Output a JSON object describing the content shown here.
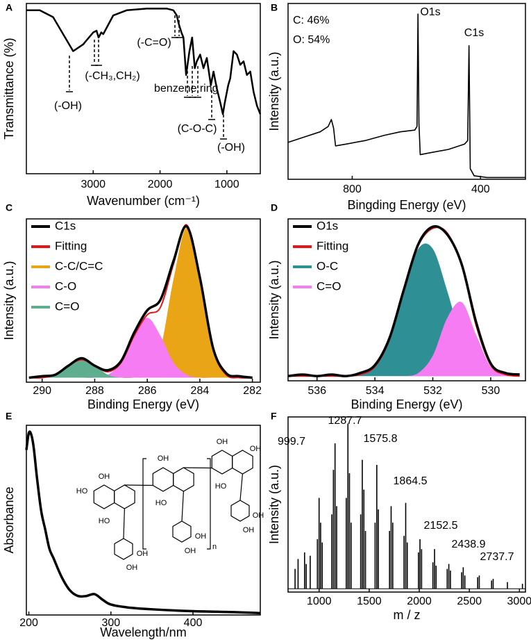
{
  "chart_data": [
    {
      "panel": "A",
      "type": "line",
      "xlabel": "Wavenumber (cm⁻¹)",
      "ylabel": "Transmittance (%)",
      "xlim": [
        4000,
        500
      ],
      "xticks": [
        3000,
        2000,
        1000
      ],
      "ylim": [
        0,
        100
      ],
      "color": "#000000",
      "x": [
        4000,
        3800,
        3600,
        3450,
        3300,
        3150,
        3000,
        2950,
        2920,
        2880,
        2850,
        2700,
        2500,
        2200,
        1900,
        1800,
        1750,
        1720,
        1680,
        1650,
        1610,
        1560,
        1520,
        1480,
        1450,
        1400,
        1350,
        1300,
        1240,
        1200,
        1150,
        1100,
        1060,
        1030,
        980,
        950,
        900,
        850,
        800,
        750,
        700,
        650,
        600,
        550,
        500
      ],
      "values": [
        96,
        96,
        92,
        82,
        72,
        76,
        83,
        84,
        80,
        83,
        82,
        93,
        96,
        97,
        97,
        96,
        93,
        88,
        83,
        80,
        58,
        72,
        80,
        62,
        66,
        70,
        62,
        68,
        52,
        60,
        50,
        42,
        35,
        42,
        52,
        56,
        72,
        70,
        64,
        66,
        58,
        60,
        48,
        40,
        35
      ],
      "annotations": [
        "(-OH)",
        "(-CH₃,CH₂)",
        "(-C=O)",
        "benzene ring",
        "(C-O-C)",
        "(-OH)"
      ]
    },
    {
      "panel": "B",
      "type": "line",
      "xlabel": "Bingding Energy (eV)",
      "ylabel": "Intensity (a.u.)",
      "xlim": [
        1000,
        260
      ],
      "xticks": [
        800,
        400
      ],
      "ylim": [
        0,
        100
      ],
      "color": "#000000",
      "x": [
        1000,
        950,
        900,
        875,
        865,
        858,
        852,
        820,
        760,
        700,
        650,
        605,
        598,
        595,
        592,
        588,
        560,
        500,
        450,
        440,
        436,
        432,
        420,
        380,
        300,
        260
      ],
      "values": [
        21,
        24,
        27,
        30,
        34,
        29,
        19,
        20,
        22,
        25,
        27,
        28,
        30,
        94,
        32,
        14,
        15,
        17,
        20,
        22,
        76,
        6,
        2,
        1,
        1,
        1
      ],
      "annotations": [
        "C: 46%",
        "O: 54%",
        "O1s",
        "C1s"
      ]
    },
    {
      "panel": "C",
      "type": "line",
      "xlabel": "Binding Energy (eV)",
      "ylabel": "Intensity (a.u.)",
      "xlim": [
        290.6,
        281.7
      ],
      "xticks": [
        290,
        288,
        286,
        284,
        282
      ],
      "ylim": [
        -3,
        106
      ],
      "legend": "upper left",
      "smooth": true,
      "x": [
        290.5,
        290,
        289.5,
        289,
        288.5,
        288,
        287.5,
        287,
        286.5,
        286,
        285.5,
        285,
        284.5,
        284,
        283.5,
        283,
        282.5,
        282
      ],
      "series": [
        {
          "name": "C1s",
          "color": "#000000",
          "fill": false,
          "values": [
            0,
            1,
            2,
            8,
            13,
            8,
            5,
            11,
            30,
            45,
            52,
            78,
            101,
            67,
            20,
            3,
            1,
            0
          ]
        },
        {
          "name": "Fitting",
          "color": "#e8141a",
          "fill": false,
          "values": [
            0,
            0,
            2,
            8,
            12,
            8,
            4,
            10,
            28,
            42,
            47,
            76,
            102,
            66,
            19,
            2,
            0,
            0
          ]
        },
        {
          "name": "C-C/C=C",
          "color": "#e9a516",
          "fill": true,
          "values": [
            0,
            0,
            0,
            0,
            0,
            0,
            0,
            0,
            0,
            2,
            19,
            66,
            100,
            66,
            19,
            2,
            0,
            0
          ]
        },
        {
          "name": "C-O",
          "color": "#f57cf2",
          "fill": true,
          "values": [
            0,
            0,
            0,
            0,
            0,
            0,
            2,
            10,
            28,
            40,
            28,
            10,
            2,
            0,
            0,
            0,
            0,
            0
          ]
        },
        {
          "name": "C=O",
          "color": "#5fae8f",
          "fill": true,
          "values": [
            0,
            0,
            2,
            8,
            12,
            8,
            2,
            0,
            0,
            0,
            0,
            0,
            0,
            0,
            0,
            0,
            0,
            0
          ]
        }
      ]
    },
    {
      "panel": "D",
      "type": "line",
      "xlabel": "Binding Energy (eV)",
      "ylabel": "Intensity (a.u.)",
      "xlim": [
        537,
        528.8
      ],
      "xticks": [
        536,
        534,
        532,
        530
      ],
      "ylim": [
        -3,
        100
      ],
      "legend": "upper left",
      "smooth": true,
      "x": [
        537,
        536.5,
        536,
        535.5,
        535,
        534.5,
        534,
        533.5,
        533,
        532.5,
        532,
        531.5,
        531,
        530.5,
        530,
        529.5,
        529
      ],
      "series": [
        {
          "name": "O1s",
          "color": "#000000",
          "fill": false,
          "values": [
            0,
            1,
            0,
            1,
            0,
            2,
            7,
            24,
            55,
            84,
            95,
            90,
            71,
            34,
            8,
            2,
            1
          ]
        },
        {
          "name": "Fitting",
          "color": "#e8141a",
          "fill": false,
          "values": [
            0,
            0,
            0,
            0,
            0,
            1,
            6,
            23,
            54,
            83,
            94,
            91,
            70,
            32,
            7,
            1,
            0
          ]
        },
        {
          "name": "O-C",
          "color": "#2e8f94",
          "fill": true,
          "values": [
            0,
            0,
            0,
            0,
            0,
            1,
            6,
            23,
            54,
            81,
            81,
            54,
            23,
            6,
            1,
            0,
            0
          ]
        },
        {
          "name": "C=O",
          "color": "#f57cf2",
          "fill": true,
          "values": [
            0,
            0,
            0,
            0,
            0,
            0,
            0,
            0,
            0,
            2,
            13,
            37,
            47,
            26,
            6,
            1,
            0
          ]
        }
      ]
    },
    {
      "panel": "E",
      "type": "line",
      "xlabel": "Wavelength/nm",
      "ylabel": "Absorbance",
      "xlim": [
        197,
        482
      ],
      "xticks": [
        200,
        300,
        400
      ],
      "ylim": [
        0,
        100
      ],
      "color": "#000000",
      "smooth": true,
      "x": [
        197,
        200,
        203,
        206,
        210,
        215,
        220,
        225,
        230,
        240,
        250,
        260,
        270,
        280,
        290,
        300,
        320,
        350,
        400,
        450,
        482
      ],
      "values": [
        87,
        96,
        95,
        88,
        72,
        55,
        45,
        35,
        30,
        20,
        13,
        10,
        10,
        11,
        8,
        5.5,
        4,
        3,
        2,
        1.5,
        1
      ],
      "structure_labels": [
        "HO",
        "OH",
        "HO",
        "OH",
        "OH",
        "OH",
        "HO",
        "OH",
        "OH",
        "OH",
        "OH",
        "HO",
        "OH",
        "OH",
        "n"
      ]
    },
    {
      "panel": "F",
      "type": "stem",
      "xlabel": "m / z",
      "ylabel": "Intensity (a.u.)",
      "xlim": [
        690,
        3060
      ],
      "xticks": [
        1000,
        1500,
        2000,
        2500,
        3000
      ],
      "ylim": [
        -2,
        104
      ],
      "color": "#000000",
      "x": [
        760,
        790,
        855,
        871,
        911,
        983,
        999.7,
        1015,
        1031,
        1127,
        1143,
        1159,
        1175,
        1271,
        1287.7,
        1303,
        1319,
        1415,
        1431,
        1447,
        1463,
        1559,
        1575.8,
        1591,
        1703,
        1719,
        1735,
        1848,
        1864.5,
        1880,
        1992,
        2007,
        2023,
        2136,
        2152.5,
        2168,
        2279,
        2295,
        2311,
        2423,
        2438.9,
        2455,
        2583,
        2599,
        2722,
        2737.7,
        2880,
        3030
      ],
      "values": [
        12,
        18,
        22,
        15,
        20,
        30,
        55,
        40,
        28,
        45,
        72,
        88,
        50,
        55,
        100,
        70,
        40,
        45,
        78,
        60,
        35,
        40,
        75,
        48,
        35,
        50,
        40,
        32,
        52,
        28,
        22,
        30,
        24,
        16,
        24,
        14,
        12,
        15,
        11,
        10,
        13,
        8,
        7,
        8,
        5,
        6,
        4,
        3
      ],
      "peak_labels": [
        999.7,
        1287.7,
        1575.8,
        1864.5,
        2152.5,
        2438.9,
        2737.7
      ]
    }
  ]
}
